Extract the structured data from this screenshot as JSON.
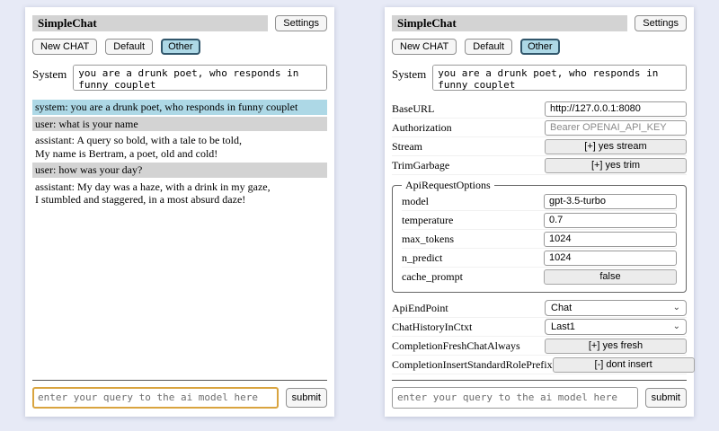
{
  "header": {
    "title": "SimpleChat",
    "settings_label": "Settings"
  },
  "toolbar": {
    "new_chat_label": "New CHAT",
    "sessions": [
      "Default",
      "Other"
    ],
    "active_session": "Other"
  },
  "system": {
    "label": "System",
    "value": "you are a drunk poet, who responds in funny couplet"
  },
  "chat": {
    "messages": [
      {
        "role": "system",
        "text": "system: you are a drunk poet, who responds in funny couplet"
      },
      {
        "role": "user",
        "text": "user: what is your name"
      },
      {
        "role": "assistant",
        "text": "assistant: A query so bold, with a tale to be told,\nMy name is Bertram, a poet, old and cold!"
      },
      {
        "role": "user",
        "text": "user: how was your day?"
      },
      {
        "role": "assistant",
        "text": "assistant: My day was a haze, with a drink in my gaze,\nI stumbled and staggered, in a most absurd daze!"
      }
    ]
  },
  "settings": {
    "base_url": {
      "label": "BaseURL",
      "value": "http://127.0.0.1:8080"
    },
    "authorization": {
      "label": "Authorization",
      "placeholder": "Bearer OPENAI_API_KEY"
    },
    "stream": {
      "label": "Stream",
      "button": "[+] yes stream"
    },
    "trim_garbage": {
      "label": "TrimGarbage",
      "button": "[+] yes trim"
    },
    "api_request_options": {
      "legend": "ApiRequestOptions",
      "model": {
        "label": "model",
        "value": "gpt-3.5-turbo"
      },
      "temperature": {
        "label": "temperature",
        "value": "0.7"
      },
      "max_tokens": {
        "label": "max_tokens",
        "value": "1024"
      },
      "n_predict": {
        "label": "n_predict",
        "value": "1024"
      },
      "cache_prompt": {
        "label": "cache_prompt",
        "button": "false"
      }
    },
    "api_endpoint": {
      "label": "ApiEndPoint",
      "value": "Chat"
    },
    "chat_history_in_ctxt": {
      "label": "ChatHistoryInCtxt",
      "value": "Last1"
    },
    "completion_fresh_chat_always": {
      "label": "CompletionFreshChatAlways",
      "button": "[+] yes fresh"
    },
    "completion_insert_standard_role_prefix": {
      "label": "CompletionInsertStandardRolePrefix",
      "button": "[-] dont insert"
    }
  },
  "query": {
    "placeholder": "enter your query to the ai model here",
    "submit_label": "submit"
  },
  "icons": {
    "chevron_down": "⌄"
  },
  "colors": {
    "page_bg": "#e7eaf6",
    "titlebar_bg": "#d3d3d3",
    "system_msg_bg": "#add8e6",
    "user_msg_bg": "#d3d3d3",
    "active_session_bg": "#add8e6",
    "active_session_border": "#31566b",
    "query_focus_border": "#d9a43f"
  }
}
